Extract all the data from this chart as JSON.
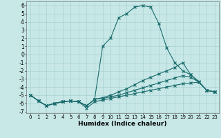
{
  "xlabel": "Humidex (Indice chaleur)",
  "bg_color": "#c8e8e8",
  "grid_color": "#a8d0d0",
  "line_color": "#1a6b6b",
  "xlim": [
    -0.5,
    23.5
  ],
  "ylim": [
    -7.2,
    6.5
  ],
  "x": [
    0,
    1,
    2,
    3,
    4,
    5,
    6,
    7,
    8,
    9,
    10,
    11,
    12,
    13,
    14,
    15,
    16,
    17,
    18,
    19,
    20,
    21,
    22,
    23
  ],
  "line_peak": [
    -5.0,
    -5.7,
    -6.3,
    -6.0,
    -5.8,
    -5.7,
    -5.8,
    -6.3,
    -5.5,
    1.0,
    2.0,
    4.5,
    5.0,
    5.8,
    6.0,
    5.8,
    3.8,
    0.8,
    -1.0,
    -2.0,
    -2.5,
    -3.3,
    -4.4,
    -4.6
  ],
  "line_mid": [
    -5.0,
    -5.7,
    -6.3,
    -6.0,
    -5.8,
    -5.7,
    -5.8,
    -6.3,
    -5.5,
    -5.3,
    -5.0,
    -4.6,
    -4.2,
    -3.7,
    -3.2,
    -2.8,
    -2.4,
    -2.0,
    -1.6,
    -1.0,
    -2.5,
    -3.4,
    -4.4,
    -4.6
  ],
  "line_low": [
    -5.0,
    -5.7,
    -6.3,
    -6.0,
    -5.8,
    -5.7,
    -5.8,
    -6.3,
    -5.5,
    -5.4,
    -5.2,
    -5.0,
    -4.7,
    -4.4,
    -4.1,
    -3.8,
    -3.5,
    -3.2,
    -2.9,
    -2.6,
    -2.8,
    -3.4,
    -4.4,
    -4.6
  ],
  "line_flat": [
    -5.0,
    -5.7,
    -6.3,
    -6.0,
    -5.8,
    -5.7,
    -5.8,
    -6.6,
    -5.8,
    -5.6,
    -5.4,
    -5.2,
    -5.0,
    -4.8,
    -4.6,
    -4.4,
    -4.2,
    -4.0,
    -3.8,
    -3.6,
    -3.5,
    -3.4,
    -4.4,
    -4.6
  ],
  "xtick_fontsize": 5.0,
  "ytick_fontsize": 5.5,
  "xlabel_fontsize": 6.5
}
